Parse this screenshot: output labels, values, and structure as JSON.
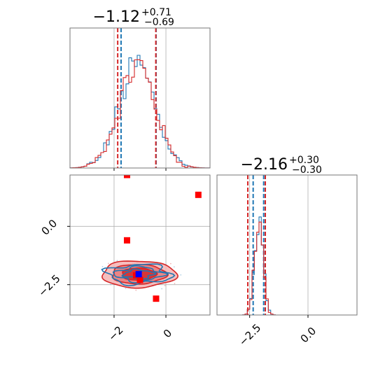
{
  "chart_data": {
    "type": "corner",
    "colors": {
      "series_a": "#1f77b4",
      "series_b": "#d62728",
      "marker_red": "#ff0000",
      "marker_blue": "#0000ff",
      "grid": "#b0b0b0"
    },
    "series": [
      {
        "color": "#1f77b4"
      },
      {
        "color": "#d62728"
      }
    ],
    "parameters": [
      {
        "title_main": "−1.12",
        "title_sup": "+0.71",
        "title_sub": "−0.69",
        "range": [
          -3.7,
          1.7
        ],
        "ticks": [
          -2,
          0
        ],
        "tick_labels": [
          "−2",
          "0"
        ],
        "quantile_lines": {
          "series_a": [
            -1.73,
            -0.38
          ],
          "series_b": [
            -1.86,
            -0.39
          ]
        },
        "hist_peak": -1.1,
        "hist_sigma": 0.7
      },
      {
        "title_main": "−2.16",
        "title_sup": "+0.30",
        "title_sub": "−0.30",
        "range": [
          -3.9,
          2.1
        ],
        "ticks": [
          -2.5,
          0.0
        ],
        "tick_labels": [
          "−2.5",
          "0.0"
        ],
        "quantile_lines": {
          "series_a": [
            -2.35,
            -1.9
          ],
          "series_b": [
            -2.58,
            -1.83
          ]
        },
        "hist_peak": -2.1,
        "hist_sigma": 0.18
      }
    ],
    "scatter_2d": {
      "x_range": [
        -3.7,
        1.7
      ],
      "y_range": [
        -3.8,
        2.2
      ],
      "y_ticks": [
        0.0,
        -2.5
      ],
      "y_tick_labels": [
        "0.0",
        "−2.5"
      ],
      "red_markers": [
        {
          "x": -1.5,
          "y": 2.2
        },
        {
          "x": 1.25,
          "y": 1.35
        },
        {
          "x": -1.5,
          "y": -0.6
        },
        {
          "x": -1.15,
          "y": -2.1
        },
        {
          "x": -1.0,
          "y": -2.3
        },
        {
          "x": -0.38,
          "y": -3.1
        }
      ],
      "blue_marker": {
        "x": -1.05,
        "y": -2.05
      },
      "contour_center": {
        "x": -1.05,
        "y": -2.05
      },
      "contour_sigma": {
        "x": 0.55,
        "y": 0.22
      }
    }
  }
}
